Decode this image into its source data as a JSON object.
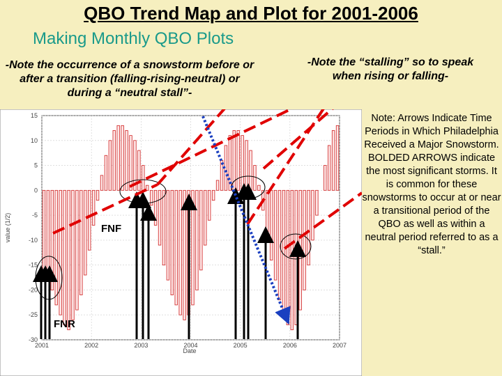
{
  "slide": {
    "title": "QBO Trend Map and Plot for 2001-2006",
    "subtitle": "Making Monthly QBO Plots",
    "note_left": "-Note the occurrence of a snowstorm before or after a transition (falling-rising-neutral) or during a “neutral stall”-",
    "note_right": "-Note the “stalling” so to speak when rising or falling-",
    "side_note": "Note: Arrows Indicate Time Periods in Which Philadelphia Received a Major Snowstorm. BOLDED ARROWS indicate the most significant storms. It is common for these snowstorms to occur at or near a transitional period of the QBO as well as within a neutral period referred to as a “stall.”"
  },
  "plot": {
    "ylabel": "value (1/2)",
    "xlabel": "Date",
    "label_fnf": "FNF",
    "label_fnr": "FNR",
    "y_ticks": [
      "15",
      "10",
      "5",
      "0",
      "-5",
      "-10",
      "-15",
      "-20",
      "-25",
      "-30"
    ],
    "x_ticks": [
      "2001",
      "2002",
      "2003",
      "2004",
      "2005",
      "2006",
      "2007"
    ],
    "colors": {
      "bars": "#d02020",
      "arrows": "#000000",
      "dashed": "#e00000",
      "dotted": "#1a3fc0"
    }
  },
  "chart_data": {
    "type": "bar",
    "ylim": [
      -30,
      15
    ],
    "xlim": [
      2001,
      2007
    ],
    "x_start": "2001-01",
    "values": [
      -16,
      -17,
      -20,
      -23,
      -25,
      -27,
      -28,
      -26,
      -24,
      -21,
      -17,
      -12,
      -7,
      -2,
      3,
      7,
      10,
      12,
      13,
      13,
      12,
      11,
      10,
      8,
      5,
      1,
      -3,
      -7,
      -11,
      -15,
      -18,
      -21,
      -23,
      -25,
      -26,
      -25,
      -23,
      -20,
      -16,
      -11,
      -6,
      -2,
      2,
      6,
      9,
      11,
      12,
      12,
      11,
      10,
      8,
      5,
      1,
      -4,
      -9,
      -14,
      -18,
      -22,
      -25,
      -27,
      -28,
      -27,
      -24,
      -20,
      -15,
      -10,
      -5,
      0,
      5,
      9,
      12,
      13
    ],
    "grid": true
  }
}
